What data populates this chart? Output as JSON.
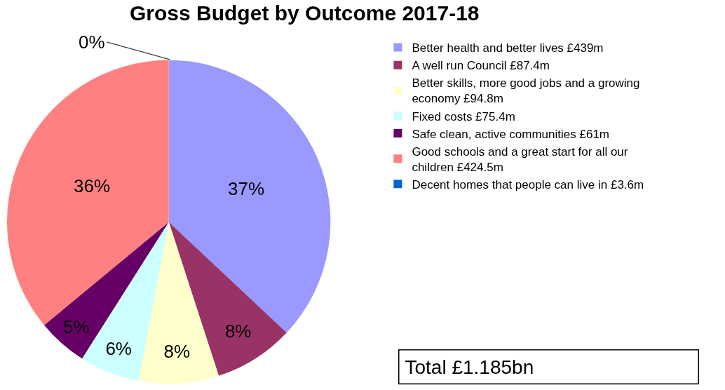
{
  "chart_data": {
    "type": "pie",
    "title": "Gross Budget by Outcome 2017-18",
    "categories": [
      "Better health and better lives £439m",
      "A well run Council £87.4m",
      "Better skills, more good jobs and a growing economy £94.8m",
      "Fixed costs £75.4m",
      "Safe clean, active communities £61m",
      "Good schools and a great start for all our children £424.5m",
      "Decent homes that people can live in £3.6m"
    ],
    "values": [
      37,
      8,
      8,
      6,
      5,
      36,
      0
    ],
    "colors": [
      "#9999ff",
      "#993366",
      "#ffffcc",
      "#ccffff",
      "#660066",
      "#ff8080",
      "#0066cc"
    ],
    "value_labels": [
      "37%",
      "8%",
      "8%",
      "6%",
      "5%",
      "36%",
      "0%"
    ],
    "legend": "right",
    "annotations": [
      "Total £1.185bn"
    ]
  }
}
